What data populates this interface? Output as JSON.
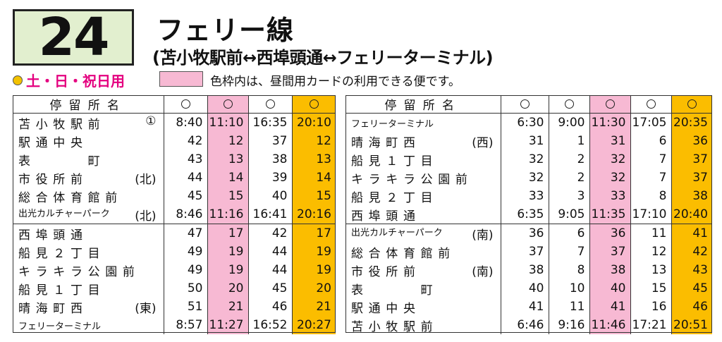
{
  "route": {
    "number": "24",
    "name": "フェリー線",
    "subtitle": "(苫小牧駅前↔西埠頭通↔フェリーターミナル)",
    "day_type": "土・日・祝日用",
    "legend_text": "色枠内は、昼間用カードの利用できる便です。"
  },
  "colors": {
    "pink": "#f7b9d3",
    "gold": "#fbbd00",
    "route_box": "#e2efcf",
    "day_type": "#e4007f"
  },
  "left": {
    "header": "停留所名",
    "col_colors": [
      "",
      "pink",
      "",
      "gold"
    ],
    "rows": [
      {
        "name": "苫小牧駅前",
        "note": "①",
        "times": [
          "8:40",
          "11:10",
          "16:35",
          "20:10"
        ],
        "group_end": false
      },
      {
        "name": "駅通中央",
        "note": "",
        "times": [
          "42",
          "12",
          "37",
          "12"
        ],
        "group_end": false
      },
      {
        "name": "表　　　町",
        "note": "",
        "times": [
          "43",
          "13",
          "38",
          "13"
        ],
        "group_end": false
      },
      {
        "name": "市役所前",
        "note": "(北)",
        "times": [
          "44",
          "14",
          "39",
          "14"
        ],
        "group_end": false
      },
      {
        "name": "総合体育館前",
        "note": "",
        "times": [
          "45",
          "15",
          "40",
          "15"
        ],
        "group_end": false
      },
      {
        "name": "出光カルチャーパーク",
        "note": "(北)",
        "times": [
          "8:46",
          "11:16",
          "16:41",
          "20:16"
        ],
        "group_end": true,
        "small": true
      },
      {
        "name": "西埠頭通",
        "note": "",
        "times": [
          "47",
          "17",
          "42",
          "17"
        ],
        "group_end": false
      },
      {
        "name": "船見２丁目",
        "note": "",
        "times": [
          "49",
          "19",
          "44",
          "19"
        ],
        "group_end": false
      },
      {
        "name": "キラキラ公園前",
        "note": "",
        "times": [
          "49",
          "19",
          "44",
          "19"
        ],
        "group_end": false
      },
      {
        "name": "船見１丁目",
        "note": "",
        "times": [
          "50",
          "20",
          "45",
          "20"
        ],
        "group_end": false
      },
      {
        "name": "晴海町西",
        "note": "(東)",
        "times": [
          "51",
          "21",
          "46",
          "21"
        ],
        "group_end": false
      },
      {
        "name": "フェリーターミナル",
        "note": "",
        "times": [
          "8:57",
          "11:27",
          "16:52",
          "20:27"
        ],
        "group_end": false,
        "small": true
      }
    ]
  },
  "right": {
    "header": "停留所名",
    "col_colors": [
      "",
      "",
      "pink",
      "",
      "gold"
    ],
    "rows": [
      {
        "name": "フェリーターミナル",
        "note": "",
        "times": [
          "6:30",
          "9:00",
          "11:30",
          "17:05",
          "20:35"
        ],
        "group_end": false,
        "small": true
      },
      {
        "name": "晴海町西",
        "note": "(西)",
        "times": [
          "31",
          "1",
          "31",
          "6",
          "36"
        ],
        "group_end": false
      },
      {
        "name": "船見１丁目",
        "note": "",
        "times": [
          "32",
          "2",
          "32",
          "7",
          "37"
        ],
        "group_end": false
      },
      {
        "name": "キラキラ公園前",
        "note": "",
        "times": [
          "32",
          "2",
          "32",
          "7",
          "37"
        ],
        "group_end": false
      },
      {
        "name": "船見２丁目",
        "note": "",
        "times": [
          "33",
          "3",
          "33",
          "8",
          "38"
        ],
        "group_end": false
      },
      {
        "name": "西埠頭通",
        "note": "",
        "times": [
          "6:35",
          "9:05",
          "11:35",
          "17:10",
          "20:40"
        ],
        "group_end": true
      },
      {
        "name": "出光カルチャーパーク",
        "note": "(南)",
        "times": [
          "36",
          "6",
          "36",
          "11",
          "41"
        ],
        "group_end": false,
        "small": true
      },
      {
        "name": "総合体育館前",
        "note": "",
        "times": [
          "37",
          "7",
          "37",
          "12",
          "42"
        ],
        "group_end": false
      },
      {
        "name": "市役所前",
        "note": "(南)",
        "times": [
          "38",
          "8",
          "38",
          "13",
          "43"
        ],
        "group_end": false
      },
      {
        "name": "表　　　町",
        "note": "",
        "times": [
          "40",
          "10",
          "40",
          "15",
          "45"
        ],
        "group_end": false
      },
      {
        "name": "駅通中央",
        "note": "",
        "times": [
          "41",
          "11",
          "41",
          "16",
          "46"
        ],
        "group_end": false
      },
      {
        "name": "苫小牧駅前",
        "note": "",
        "times": [
          "6:46",
          "9:16",
          "11:46",
          "17:21",
          "20:51"
        ],
        "group_end": false
      }
    ]
  }
}
